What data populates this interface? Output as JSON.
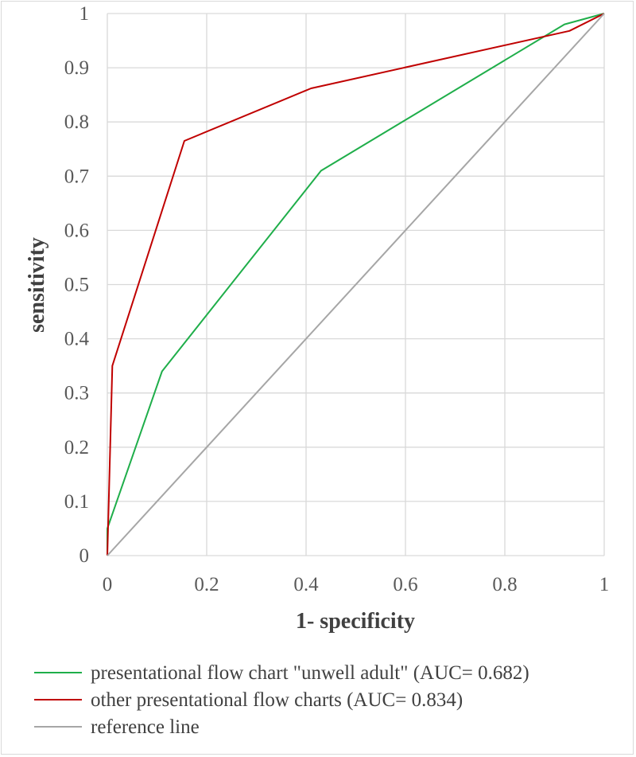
{
  "chart_data": {
    "type": "line",
    "xlabel": "1- specificity",
    "ylabel": "sensitivity",
    "xlim": [
      0,
      1
    ],
    "ylim": [
      0,
      1
    ],
    "x_ticks": [
      "0",
      "0.2",
      "0.4",
      "0.6",
      "0.8",
      "1"
    ],
    "y_ticks": [
      "0",
      "0.1",
      "0.2",
      "0.3",
      "0.4",
      "0.5",
      "0.6",
      "0.7",
      "0.8",
      "0.9",
      "1"
    ],
    "grid": true,
    "legend_position": "bottom",
    "series": [
      {
        "name": "presentational flow chart \"unwell adult\" (AUC= 0.682)",
        "color": "#1fae4a",
        "points": [
          [
            0,
            0
          ],
          [
            0,
            0.05
          ],
          [
            0.11,
            0.34
          ],
          [
            0.43,
            0.71
          ],
          [
            0.92,
            0.98
          ],
          [
            1,
            1
          ]
        ]
      },
      {
        "name": "other presentational flow charts (AUC= 0.834)",
        "color": "#c00000",
        "points": [
          [
            0,
            0
          ],
          [
            0.01,
            0.35
          ],
          [
            0.155,
            0.765
          ],
          [
            0.41,
            0.862
          ],
          [
            0.93,
            0.968
          ],
          [
            1,
            1
          ]
        ]
      },
      {
        "name": "reference line",
        "color": "#a6a6a6",
        "points": [
          [
            0,
            0
          ],
          [
            1,
            1
          ]
        ]
      }
    ]
  }
}
